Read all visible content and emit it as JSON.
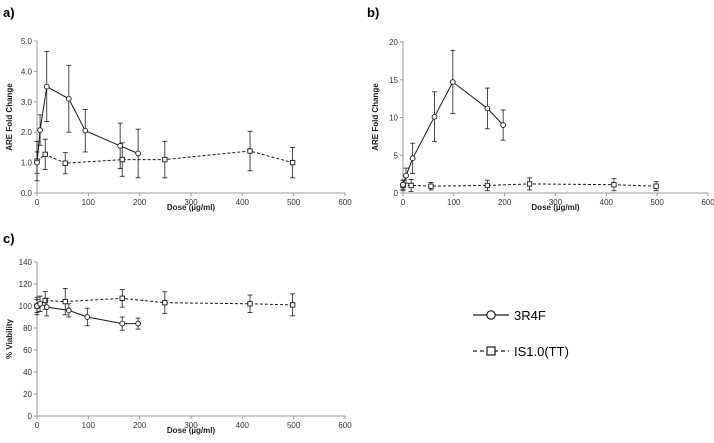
{
  "chart_data": [
    {
      "type": "line",
      "panel_label": "a)",
      "ylabel": "ARE Fold Change",
      "xlabel": "Dose (µg/ml)",
      "xlim": [
        0,
        600
      ],
      "ylim": [
        0,
        5
      ],
      "xticks": [
        "0",
        "100",
        "200",
        "300",
        "400",
        "500",
        "600"
      ],
      "yticks": [
        "0.0",
        "1.0",
        "2.0",
        "3.0",
        "4.0",
        "5.0"
      ],
      "series": [
        {
          "name": "3R4F",
          "marker": "circle",
          "line": "solid",
          "x": [
            0,
            6,
            19,
            62,
            94,
            162,
            197
          ],
          "y": [
            1.0,
            2.07,
            3.5,
            3.1,
            2.05,
            1.55,
            1.3
          ],
          "err": [
            0.35,
            0.5,
            1.15,
            1.1,
            0.7,
            0.75,
            0.8
          ]
        },
        {
          "name": "IS1.0(TT)",
          "marker": "square",
          "line": "dashed",
          "x": [
            0,
            16,
            55,
            166,
            249,
            415,
            498
          ],
          "y": [
            1.05,
            1.27,
            0.98,
            1.1,
            1.1,
            1.38,
            1.0
          ],
          "err": [
            0.65,
            0.5,
            0.35,
            0.55,
            0.6,
            0.65,
            0.5
          ]
        }
      ]
    },
    {
      "type": "line",
      "panel_label": "b)",
      "ylabel": "ARE Fold Change",
      "xlabel": "Dose (µg/ml)",
      "xlim": [
        0,
        600
      ],
      "ylim": [
        0,
        20
      ],
      "xticks": [
        "0",
        "100",
        "200",
        "300",
        "400",
        "500",
        "600"
      ],
      "yticks": [
        "0",
        "5",
        "10",
        "15",
        "20"
      ],
      "series": [
        {
          "name": "3R4F",
          "marker": "circle",
          "line": "solid",
          "x": [
            0,
            6,
            19,
            62,
            98,
            166,
            197
          ],
          "y": [
            1.1,
            2.3,
            4.6,
            10.1,
            14.7,
            11.2,
            9.0
          ],
          "err": [
            0.6,
            1.0,
            2.0,
            3.3,
            4.2,
            2.7,
            2.0
          ]
        },
        {
          "name": "IS1.0(TT)",
          "marker": "square",
          "line": "dashed",
          "x": [
            0,
            16,
            55,
            166,
            249,
            415,
            498
          ],
          "y": [
            1.0,
            1.0,
            0.9,
            1.0,
            1.2,
            1.1,
            0.9
          ],
          "err": [
            0.7,
            0.8,
            0.5,
            0.7,
            0.8,
            0.8,
            0.6
          ]
        }
      ]
    },
    {
      "type": "line",
      "panel_label": "c)",
      "ylabel": "% Viability",
      "xlabel": "Dose (µg/ml)",
      "xlim": [
        0,
        600
      ],
      "ylim": [
        0,
        140
      ],
      "xticks": [
        "0",
        "100",
        "200",
        "300",
        "400",
        "500",
        "600"
      ],
      "yticks": [
        "0",
        "20",
        "40",
        "60",
        "80",
        "100",
        "120",
        "140"
      ],
      "series": [
        {
          "name": "3R4F",
          "marker": "circle",
          "line": "solid",
          "x": [
            0,
            6,
            19,
            62,
            98,
            166,
            197
          ],
          "y": [
            100,
            102,
            99,
            96,
            90,
            84,
            84
          ],
          "err": [
            6,
            7,
            8,
            6,
            8,
            6,
            5
          ]
        },
        {
          "name": "IS1.0(TT)",
          "marker": "square",
          "line": "dashed",
          "x": [
            0,
            16,
            55,
            166,
            249,
            415,
            498
          ],
          "y": [
            100,
            105,
            104,
            107,
            103,
            102,
            101
          ],
          "err": [
            8,
            8,
            12,
            8,
            10,
            8,
            10
          ]
        }
      ]
    }
  ],
  "legend": {
    "placement": "right of panel c",
    "items": [
      {
        "label": "3R4F",
        "marker": "circle",
        "line": "solid"
      },
      {
        "label": "IS1.0(TT)",
        "marker": "square",
        "line": "dashed"
      }
    ]
  },
  "colors": {
    "line": "#1a1a1a",
    "axis": "#9a9a9a",
    "text": "#333333"
  }
}
